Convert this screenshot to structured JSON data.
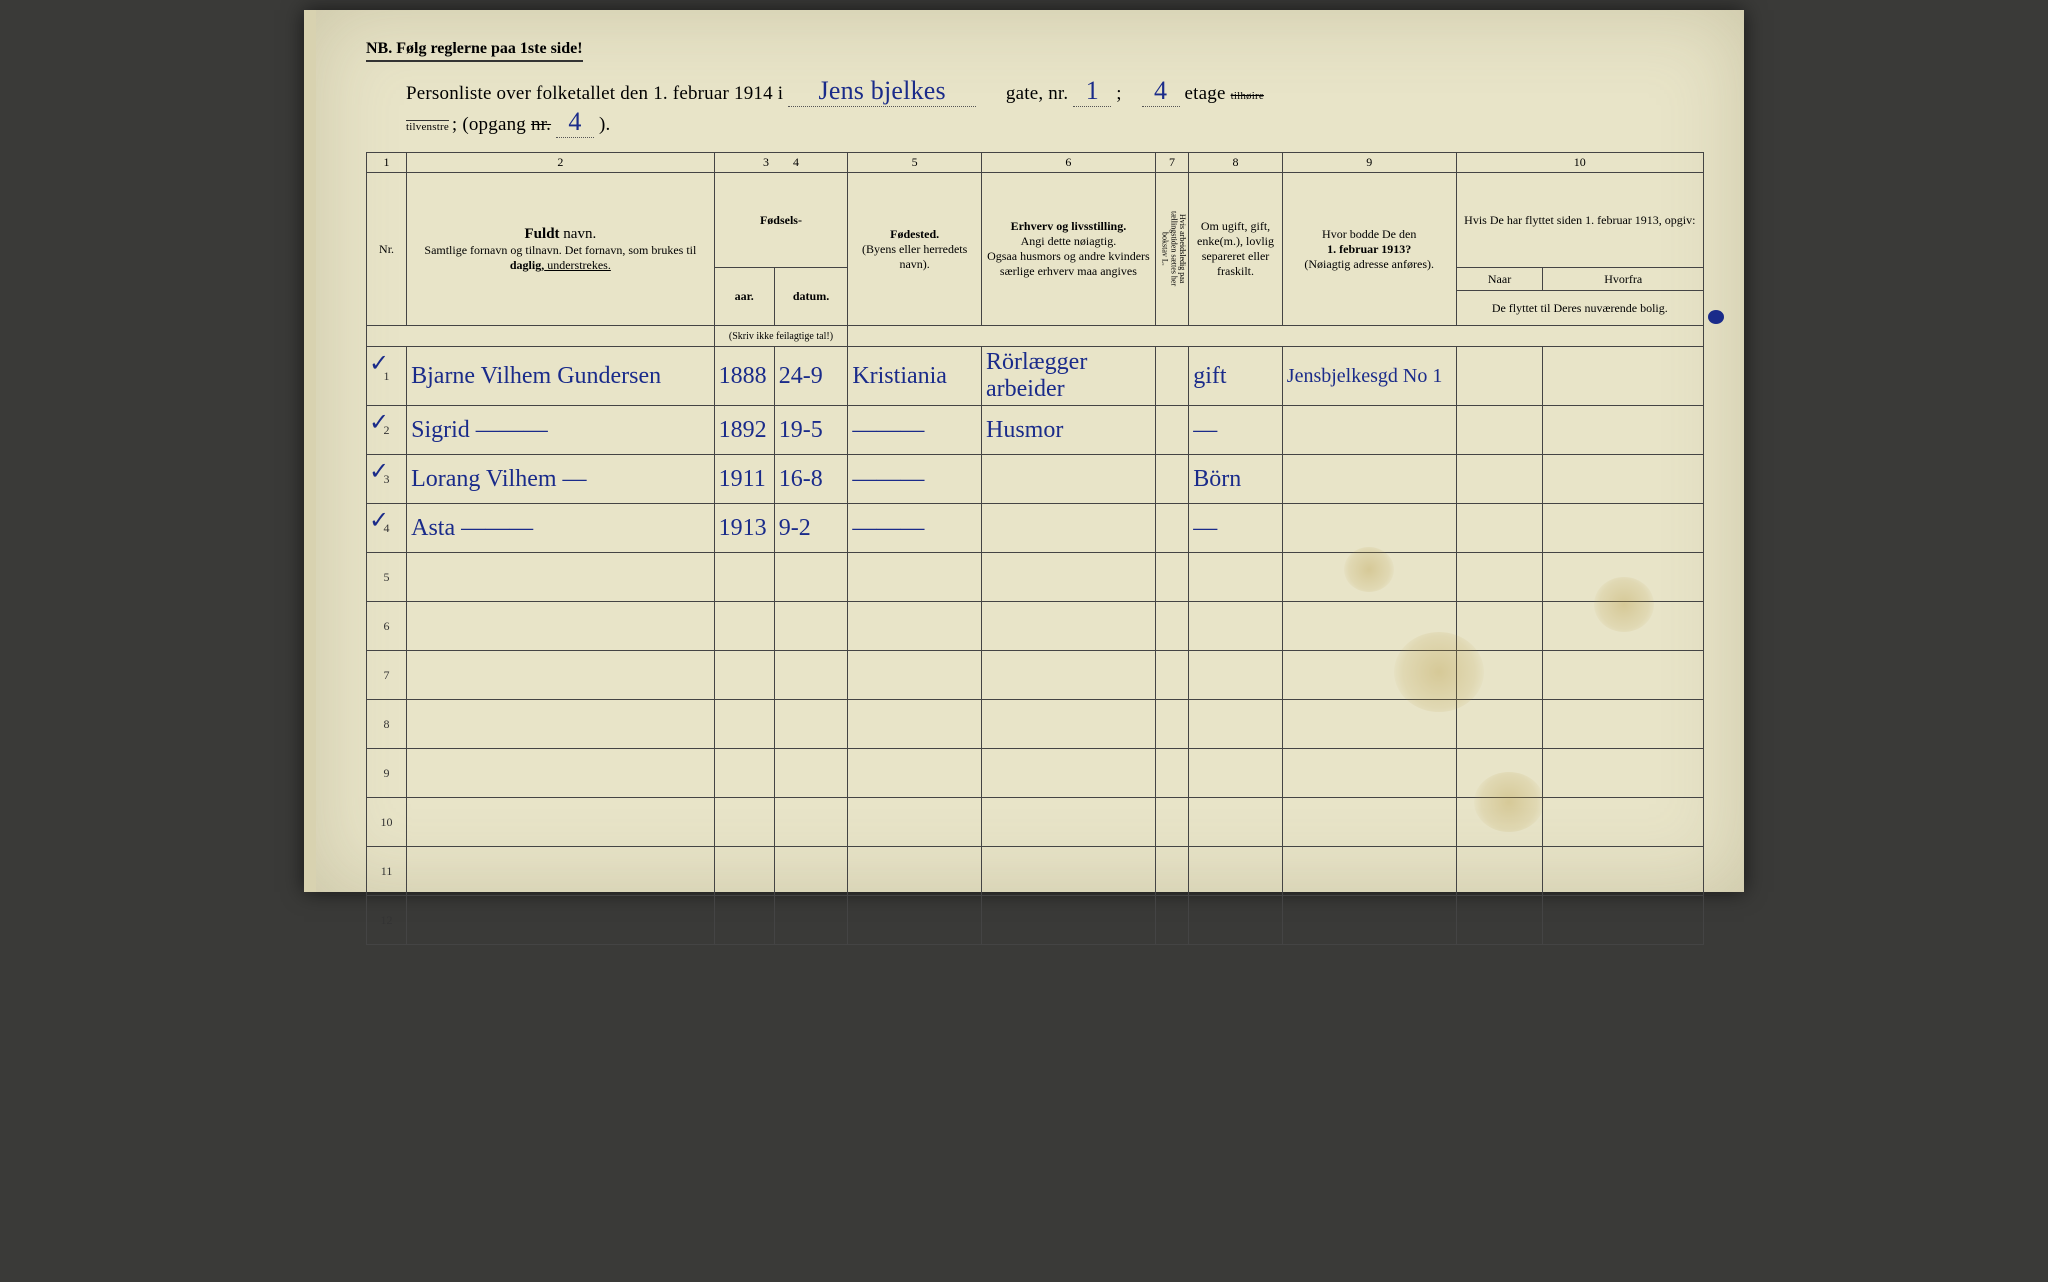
{
  "header": {
    "nb": "NB.  Følg reglerne paa 1ste side!",
    "title_pre": "Personliste over folketallet den 1. februar 1914 i",
    "street": "Jens bjelkes",
    "gate_label": "gate, nr.",
    "gate_nr": "1",
    "semicolon": ";",
    "etage_val": "4",
    "etage_label": "etage",
    "tilhoire": "tilhøire",
    "tilvenstre": "tilvenstre",
    "opgang_label": "; (opgang",
    "nr_label": "nr.",
    "opgang_val": "4",
    "close": ")."
  },
  "columns": {
    "c1": "1",
    "c2": "2",
    "c3": "3",
    "c4": "4",
    "c5": "5",
    "c6": "6",
    "c7": "7",
    "c8": "8",
    "c9": "9",
    "c10": "10",
    "nr": "Nr.",
    "fuldt_navn_b": "Fuldt",
    "fuldt_navn": " navn.",
    "navn_sub": "Samtlige fornavn og tilnavn.  Det fornavn, som brukes til ",
    "daglig": "daglig,",
    "understrekes": " understrekes.",
    "fodsels": "Fødsels-",
    "aar": "aar.",
    "datum": "datum.",
    "skriv": "(Skriv ikke feilagtige tal!)",
    "fodested": "Fødested.",
    "fodested_sub": "(Byens eller herredets navn).",
    "erhverv_b": "Erhverv og livsstilling.",
    "erhverv_sub1": "Angi dette nøiagtig.",
    "erhverv_sub2": "Ogsaa husmors og andre kvinders særlige erhverv maa angives",
    "col7_text": "Hvis arbeidsledig paa tællingstiden sættes her bokstav L.",
    "col8": "Om ugift, gift, enke(m.), lovlig separeret eller fraskilt.",
    "col9_a": "Hvor bodde De den",
    "col9_b": "1. februar 1913?",
    "col9_sub": "(Nøiagtig adresse anføres).",
    "col10_top": "Hvis De har flyttet siden 1. februar 1913, opgiv:",
    "col10_naar": "Naar",
    "col10_hvorfra": "Hvorfra",
    "col10_sub": "De flyttet til Deres nuværende bolig."
  },
  "rows": [
    {
      "nr": "1",
      "tick": "✓",
      "name": "Bjarne Vilhem Gundersen",
      "aar": "1888",
      "datum": "24-9",
      "fodested": "Kristiania",
      "erhverv": "Rörlægger arbeider",
      "c7": "",
      "status": "gift",
      "addr": "Jensbjelkesgd No 1",
      "naar": "",
      "hvorfra": ""
    },
    {
      "nr": "2",
      "tick": "✓",
      "name": "Sigrid          ———",
      "aar": "1892",
      "datum": "19-5",
      "fodested": "———",
      "erhverv": "Husmor",
      "c7": "",
      "status": "—",
      "addr": "",
      "naar": "",
      "hvorfra": ""
    },
    {
      "nr": "3",
      "tick": "✓",
      "name": "Lorang Vilhem  —",
      "aar": "1911",
      "datum": "16-8",
      "fodested": "———",
      "erhverv": "",
      "c7": "",
      "status": "Börn",
      "addr": "",
      "naar": "",
      "hvorfra": ""
    },
    {
      "nr": "4",
      "tick": "✓",
      "name": "Asta           ———",
      "aar": "1913",
      "datum": "9-2",
      "fodested": "———",
      "erhverv": "",
      "c7": "",
      "status": "—",
      "addr": "",
      "naar": "",
      "hvorfra": ""
    },
    {
      "nr": "5",
      "tick": "",
      "name": "",
      "aar": "",
      "datum": "",
      "fodested": "",
      "erhverv": "",
      "c7": "",
      "status": "",
      "addr": "",
      "naar": "",
      "hvorfra": ""
    },
    {
      "nr": "6",
      "tick": "",
      "name": "",
      "aar": "",
      "datum": "",
      "fodested": "",
      "erhverv": "",
      "c7": "",
      "status": "",
      "addr": "",
      "naar": "",
      "hvorfra": ""
    },
    {
      "nr": "7",
      "tick": "",
      "name": "",
      "aar": "",
      "datum": "",
      "fodested": "",
      "erhverv": "",
      "c7": "",
      "status": "",
      "addr": "",
      "naar": "",
      "hvorfra": ""
    },
    {
      "nr": "8",
      "tick": "",
      "name": "",
      "aar": "",
      "datum": "",
      "fodested": "",
      "erhverv": "",
      "c7": "",
      "status": "",
      "addr": "",
      "naar": "",
      "hvorfra": ""
    },
    {
      "nr": "9",
      "tick": "",
      "name": "",
      "aar": "",
      "datum": "",
      "fodested": "",
      "erhverv": "",
      "c7": "",
      "status": "",
      "addr": "",
      "naar": "",
      "hvorfra": ""
    },
    {
      "nr": "10",
      "tick": "",
      "name": "",
      "aar": "",
      "datum": "",
      "fodested": "",
      "erhverv": "",
      "c7": "",
      "status": "",
      "addr": "",
      "naar": "",
      "hvorfra": ""
    },
    {
      "nr": "11",
      "tick": "",
      "name": "",
      "aar": "",
      "datum": "",
      "fodested": "",
      "erhverv": "",
      "c7": "",
      "status": "",
      "addr": "",
      "naar": "",
      "hvorfra": ""
    },
    {
      "nr": "12",
      "tick": "",
      "name": "",
      "aar": "",
      "datum": "",
      "fodested": "",
      "erhverv": "",
      "c7": "",
      "status": "",
      "addr": "",
      "naar": "",
      "hvorfra": ""
    }
  ],
  "layout": {
    "col_widths_pct": [
      3,
      23,
      4.5,
      5.5,
      10,
      13,
      2.5,
      7,
      13,
      18.5
    ],
    "col10_split_pct": [
      35,
      65
    ]
  },
  "colors": {
    "paper": "#e8e4c8",
    "ink_print": "#2a2a2a",
    "ink_hand": "#1a2b8a",
    "border": "#444444"
  }
}
